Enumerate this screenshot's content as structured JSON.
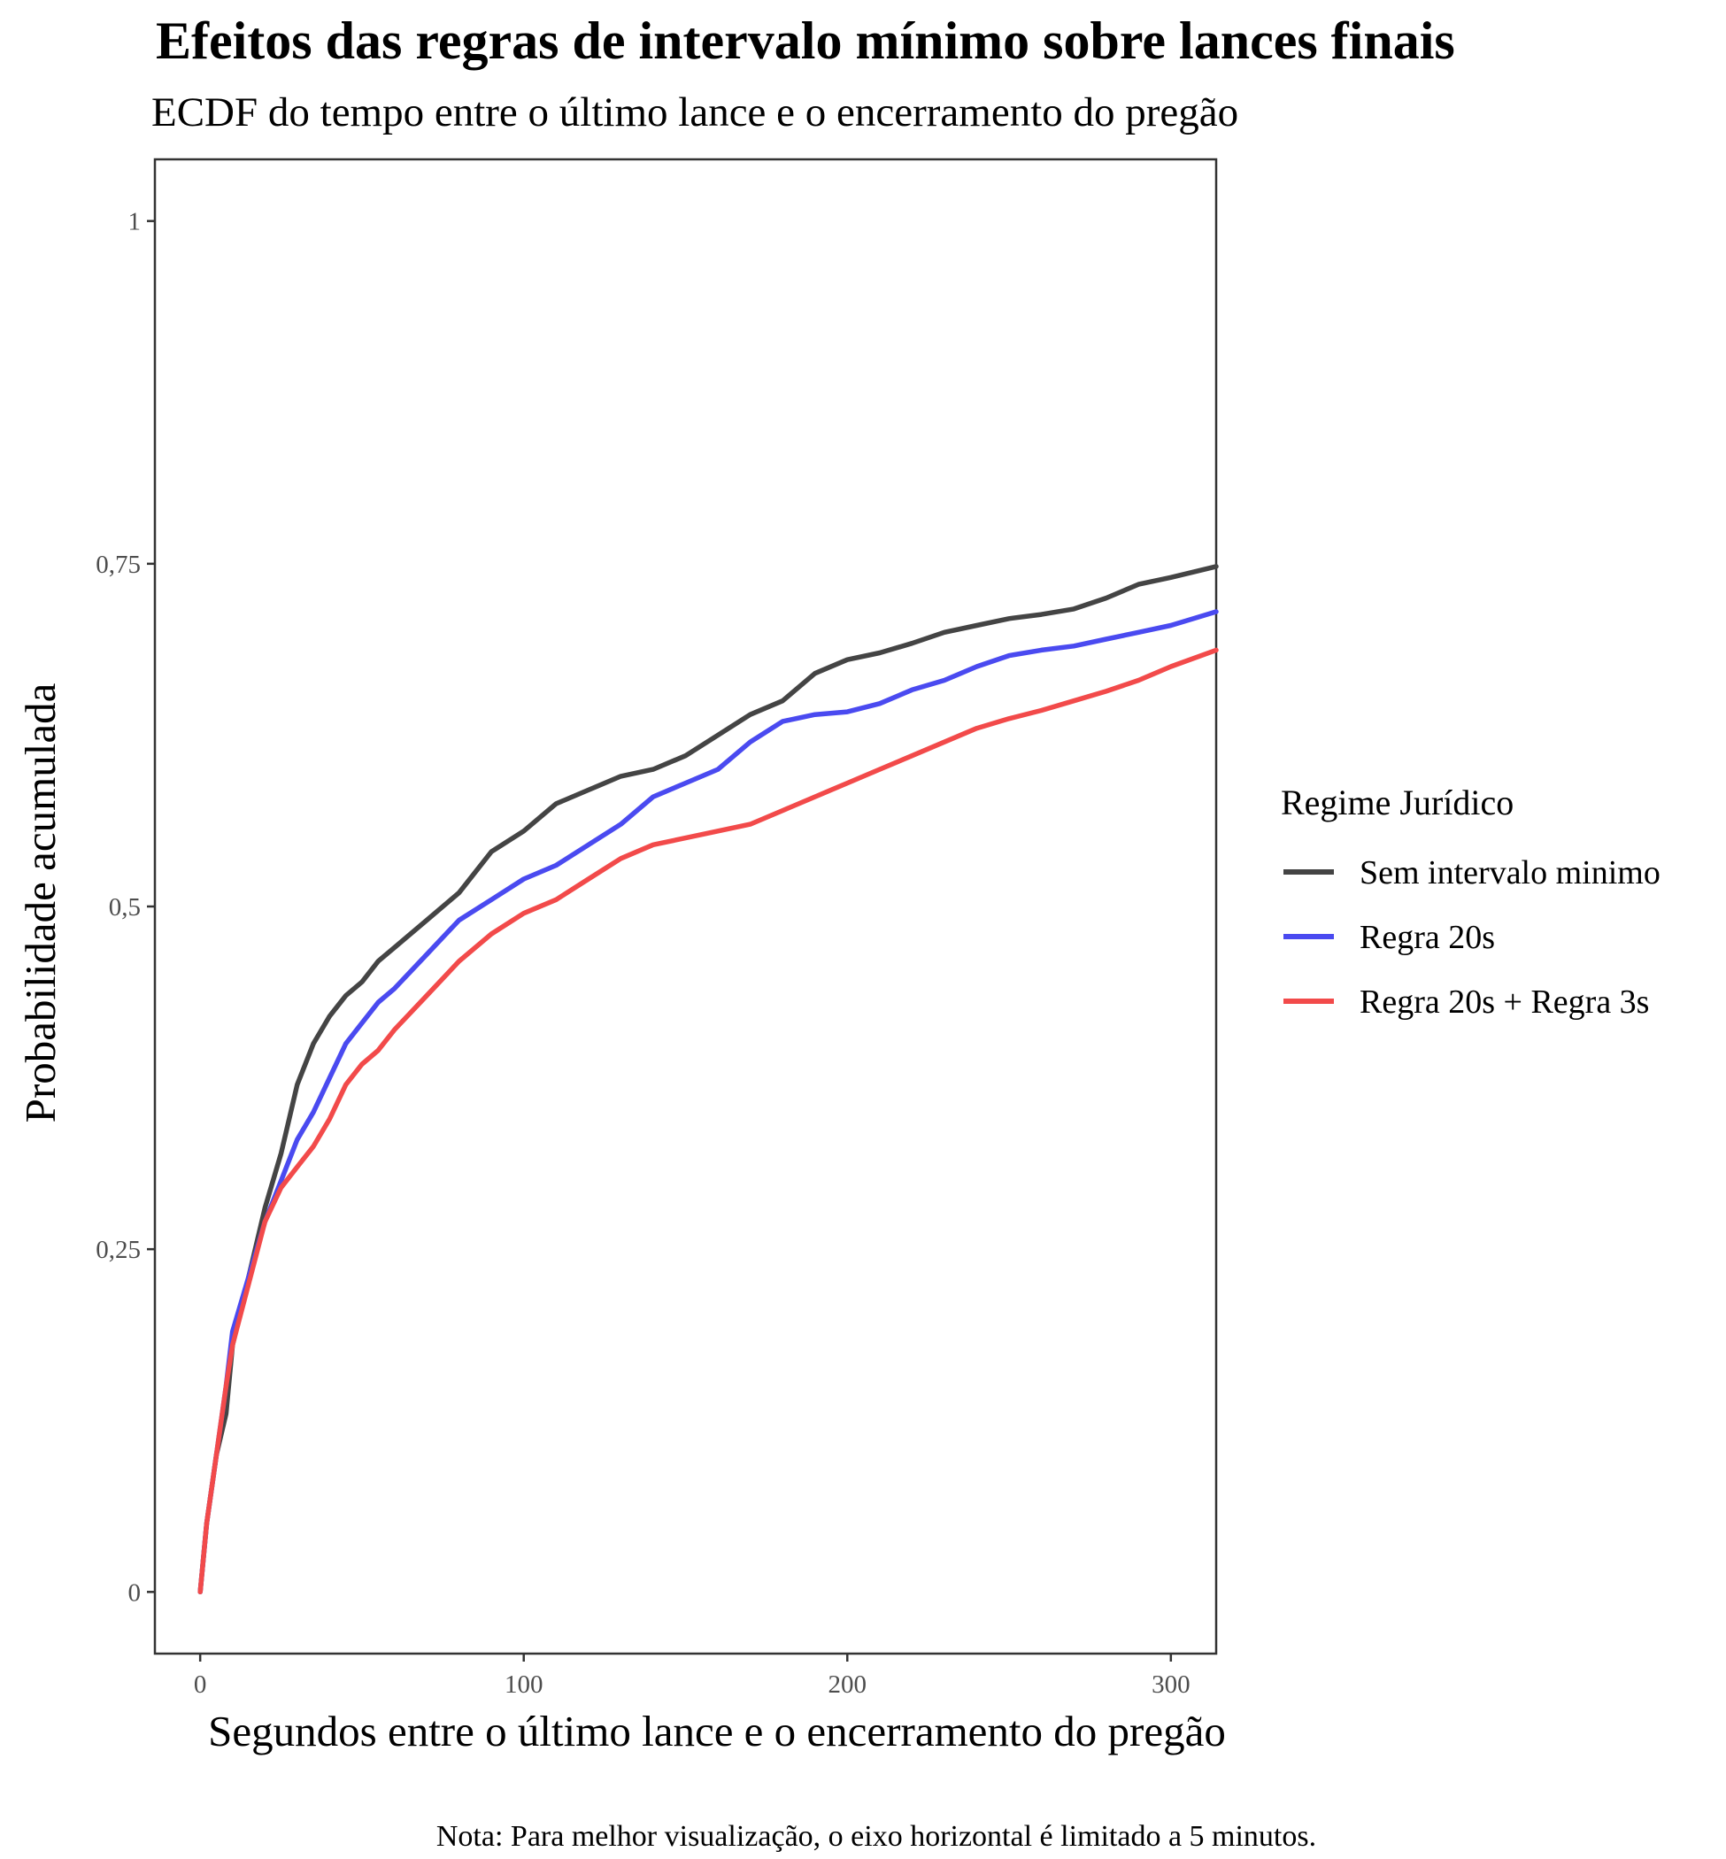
{
  "chart_data": {
    "type": "line",
    "title": "Efeitos das regras de intervalo mínimo sobre lances finais",
    "subtitle": "ECDF do tempo entre o último lance e o encerramento do pregão",
    "xlabel": "Segundos entre o último lance e o encerramento do pregão",
    "ylabel": "Probabilidade acumulada",
    "caption": "Nota: Para melhor visualização, o eixo horizontal é limitado a 5 minutos.",
    "xlim": [
      -14,
      314
    ],
    "ylim": [
      -0.045,
      1.045
    ],
    "x_ticks": [
      0,
      100,
      200,
      300
    ],
    "x_tick_labels": [
      "0",
      "100",
      "200",
      "300"
    ],
    "y_ticks": [
      0,
      0.25,
      0.5,
      0.75,
      1
    ],
    "y_tick_labels": [
      "0",
      "0,25",
      "0,5",
      "0,75",
      "1"
    ],
    "grid": false,
    "legend": {
      "title": "Regime Jurídico",
      "position": "right"
    },
    "series": [
      {
        "name": "Sem intervalo minimo",
        "color": "#444444",
        "points": [
          [
            0,
            0
          ],
          [
            2,
            0.05
          ],
          [
            5,
            0.1
          ],
          [
            8,
            0.13
          ],
          [
            10,
            0.18
          ],
          [
            15,
            0.23
          ],
          [
            20,
            0.28
          ],
          [
            25,
            0.32
          ],
          [
            30,
            0.37
          ],
          [
            35,
            0.4
          ],
          [
            40,
            0.42
          ],
          [
            45,
            0.435
          ],
          [
            50,
            0.445
          ],
          [
            55,
            0.46
          ],
          [
            60,
            0.47
          ],
          [
            70,
            0.49
          ],
          [
            80,
            0.51
          ],
          [
            90,
            0.54
          ],
          [
            100,
            0.555
          ],
          [
            110,
            0.575
          ],
          [
            120,
            0.585
          ],
          [
            130,
            0.595
          ],
          [
            140,
            0.6
          ],
          [
            150,
            0.61
          ],
          [
            160,
            0.625
          ],
          [
            170,
            0.64
          ],
          [
            180,
            0.65
          ],
          [
            190,
            0.67
          ],
          [
            200,
            0.68
          ],
          [
            210,
            0.685
          ],
          [
            220,
            0.692
          ],
          [
            230,
            0.7
          ],
          [
            240,
            0.705
          ],
          [
            250,
            0.71
          ],
          [
            260,
            0.713
          ],
          [
            270,
            0.717
          ],
          [
            280,
            0.725
          ],
          [
            290,
            0.735
          ],
          [
            300,
            0.74
          ],
          [
            314,
            0.748
          ]
        ]
      },
      {
        "name": "Regra 20s",
        "color": "#4a4af0",
        "points": [
          [
            0,
            0
          ],
          [
            2,
            0.05
          ],
          [
            5,
            0.1
          ],
          [
            8,
            0.15
          ],
          [
            10,
            0.19
          ],
          [
            15,
            0.23
          ],
          [
            20,
            0.27
          ],
          [
            25,
            0.3
          ],
          [
            30,
            0.33
          ],
          [
            35,
            0.35
          ],
          [
            40,
            0.375
          ],
          [
            45,
            0.4
          ],
          [
            50,
            0.415
          ],
          [
            55,
            0.43
          ],
          [
            60,
            0.44
          ],
          [
            70,
            0.465
          ],
          [
            80,
            0.49
          ],
          [
            90,
            0.505
          ],
          [
            100,
            0.52
          ],
          [
            110,
            0.53
          ],
          [
            120,
            0.545
          ],
          [
            130,
            0.56
          ],
          [
            140,
            0.58
          ],
          [
            150,
            0.59
          ],
          [
            160,
            0.6
          ],
          [
            170,
            0.62
          ],
          [
            180,
            0.635
          ],
          [
            190,
            0.64
          ],
          [
            200,
            0.642
          ],
          [
            210,
            0.648
          ],
          [
            220,
            0.658
          ],
          [
            230,
            0.665
          ],
          [
            240,
            0.675
          ],
          [
            250,
            0.683
          ],
          [
            260,
            0.687
          ],
          [
            270,
            0.69
          ],
          [
            280,
            0.695
          ],
          [
            290,
            0.7
          ],
          [
            300,
            0.705
          ],
          [
            314,
            0.715
          ]
        ]
      },
      {
        "name": "Regra 20s + Regra 3s",
        "color": "#f24a4a",
        "points": [
          [
            0,
            0
          ],
          [
            2,
            0.05
          ],
          [
            5,
            0.1
          ],
          [
            8,
            0.15
          ],
          [
            10,
            0.18
          ],
          [
            15,
            0.225
          ],
          [
            20,
            0.27
          ],
          [
            25,
            0.295
          ],
          [
            30,
            0.31
          ],
          [
            35,
            0.325
          ],
          [
            40,
            0.345
          ],
          [
            45,
            0.37
          ],
          [
            50,
            0.385
          ],
          [
            55,
            0.395
          ],
          [
            60,
            0.41
          ],
          [
            70,
            0.435
          ],
          [
            80,
            0.46
          ],
          [
            90,
            0.48
          ],
          [
            100,
            0.495
          ],
          [
            110,
            0.505
          ],
          [
            120,
            0.52
          ],
          [
            130,
            0.535
          ],
          [
            140,
            0.545
          ],
          [
            150,
            0.55
          ],
          [
            160,
            0.555
          ],
          [
            170,
            0.56
          ],
          [
            180,
            0.57
          ],
          [
            190,
            0.58
          ],
          [
            200,
            0.59
          ],
          [
            210,
            0.6
          ],
          [
            220,
            0.61
          ],
          [
            230,
            0.62
          ],
          [
            240,
            0.63
          ],
          [
            250,
            0.637
          ],
          [
            260,
            0.643
          ],
          [
            270,
            0.65
          ],
          [
            280,
            0.657
          ],
          [
            290,
            0.665
          ],
          [
            300,
            0.675
          ],
          [
            314,
            0.687
          ]
        ]
      }
    ]
  }
}
